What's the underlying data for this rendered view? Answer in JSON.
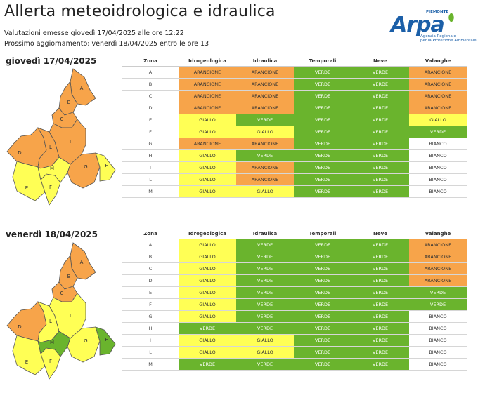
{
  "header": {
    "title": "Allerta meteoidrologica e idraulica",
    "issued": "Valutazioni emesse giovedì 17/04/2025 alle ore 12:22",
    "next_update": "Prossimo aggiornamento: venerdì 18/04/2025 entro le ore 13"
  },
  "logo": {
    "brand": "Arpa",
    "region": "PIEMONTE",
    "tagline1": "Agenzia Regionale",
    "tagline2": "per la Protezione Ambientale"
  },
  "colors": {
    "ARANCIONE": "#f7a44a",
    "GIALLO": "#ffff55",
    "VERDE": "#6ab42d",
    "BIANCO": "#ffffff"
  },
  "columns": [
    "Zona",
    "Idrogeologica",
    "Idraulica",
    "Temporali",
    "Neve",
    "Valanghe"
  ],
  "days": [
    {
      "label": "giovedì 17/04/2025",
      "rows": [
        [
          "A",
          "ARANCIONE",
          "ARANCIONE",
          "VERDE",
          "VERDE",
          "ARANCIONE"
        ],
        [
          "B",
          "ARANCIONE",
          "ARANCIONE",
          "VERDE",
          "VERDE",
          "ARANCIONE"
        ],
        [
          "C",
          "ARANCIONE",
          "ARANCIONE",
          "VERDE",
          "VERDE",
          "ARANCIONE"
        ],
        [
          "D",
          "ARANCIONE",
          "ARANCIONE",
          "VERDE",
          "VERDE",
          "ARANCIONE"
        ],
        [
          "E",
          "GIALLO",
          "VERDE",
          "VERDE",
          "VERDE",
          "GIALLO"
        ],
        [
          "F",
          "GIALLO",
          "GIALLO",
          "VERDE",
          "VERDE",
          "VERDE"
        ],
        [
          "G",
          "ARANCIONE",
          "ARANCIONE",
          "VERDE",
          "VERDE",
          "BIANCO"
        ],
        [
          "H",
          "GIALLO",
          "VERDE",
          "VERDE",
          "VERDE",
          "BIANCO"
        ],
        [
          "I",
          "GIALLO",
          "ARANCIONE",
          "VERDE",
          "VERDE",
          "BIANCO"
        ],
        [
          "L",
          "GIALLO",
          "ARANCIONE",
          "VERDE",
          "VERDE",
          "BIANCO"
        ],
        [
          "M",
          "GIALLO",
          "GIALLO",
          "VERDE",
          "VERDE",
          "BIANCO"
        ]
      ],
      "map_zones": {
        "A": "ARANCIONE",
        "B": "ARANCIONE",
        "C": "ARANCIONE",
        "D": "ARANCIONE",
        "E": "GIALLO",
        "F": "GIALLO",
        "G": "ARANCIONE",
        "H": "GIALLO",
        "I": "ARANCIONE",
        "L": "ARANCIONE",
        "M": "GIALLO"
      }
    },
    {
      "label": "venerdì 18/04/2025",
      "rows": [
        [
          "A",
          "GIALLO",
          "VERDE",
          "VERDE",
          "VERDE",
          "ARANCIONE"
        ],
        [
          "B",
          "GIALLO",
          "VERDE",
          "VERDE",
          "VERDE",
          "ARANCIONE"
        ],
        [
          "C",
          "GIALLO",
          "VERDE",
          "VERDE",
          "VERDE",
          "ARANCIONE"
        ],
        [
          "D",
          "GIALLO",
          "VERDE",
          "VERDE",
          "VERDE",
          "ARANCIONE"
        ],
        [
          "E",
          "GIALLO",
          "VERDE",
          "VERDE",
          "VERDE",
          "VERDE"
        ],
        [
          "F",
          "GIALLO",
          "VERDE",
          "VERDE",
          "VERDE",
          "VERDE"
        ],
        [
          "G",
          "GIALLO",
          "VERDE",
          "VERDE",
          "VERDE",
          "BIANCO"
        ],
        [
          "H",
          "VERDE",
          "VERDE",
          "VERDE",
          "VERDE",
          "BIANCO"
        ],
        [
          "I",
          "GIALLO",
          "GIALLO",
          "VERDE",
          "VERDE",
          "BIANCO"
        ],
        [
          "L",
          "GIALLO",
          "GIALLO",
          "VERDE",
          "VERDE",
          "BIANCO"
        ],
        [
          "M",
          "VERDE",
          "VERDE",
          "VERDE",
          "VERDE",
          "BIANCO"
        ]
      ],
      "map_zones": {
        "A": "ARANCIONE",
        "B": "ARANCIONE",
        "C": "ARANCIONE",
        "D": "ARANCIONE",
        "E": "GIALLO",
        "F": "GIALLO",
        "G": "GIALLO",
        "H": "VERDE",
        "I": "GIALLO",
        "L": "GIALLO",
        "M": "VERDE"
      }
    }
  ]
}
